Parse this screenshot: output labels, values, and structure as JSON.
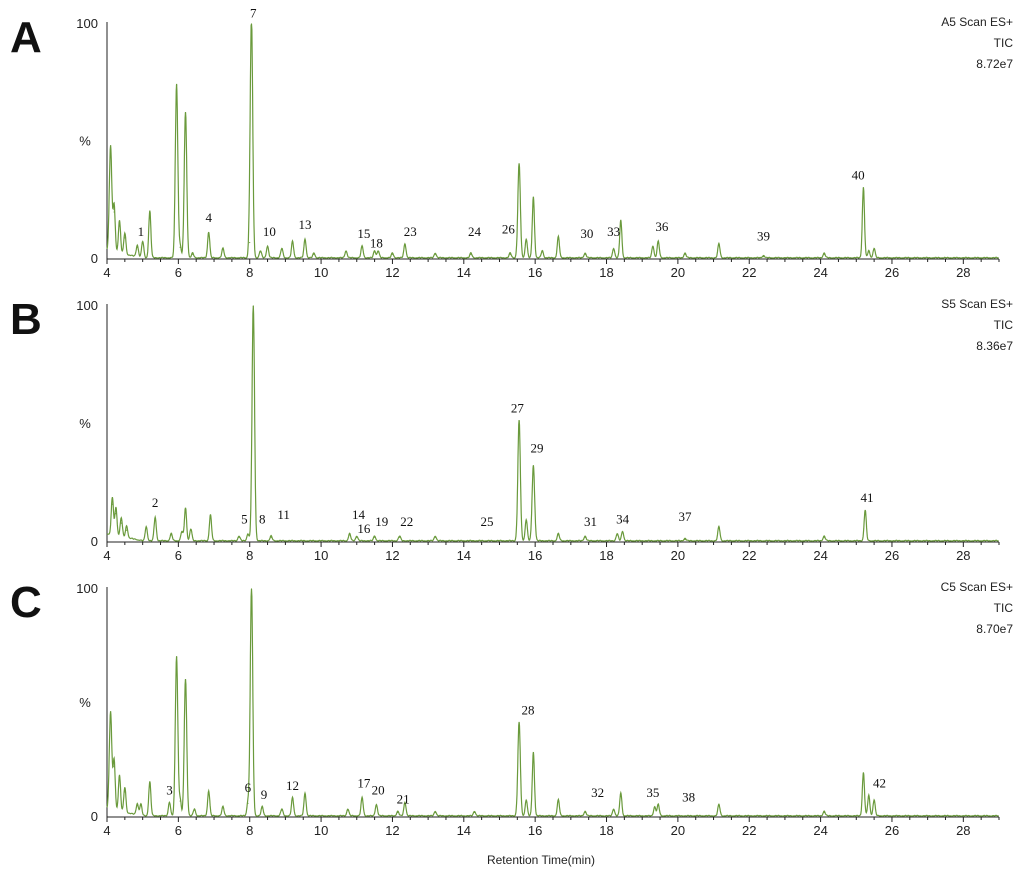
{
  "chart_data": [
    {
      "type": "line",
      "panel": "A",
      "info": [
        "A5  Scan ES+",
        "TIC",
        "8.72e7"
      ],
      "xlabel": "",
      "ylabel": "%",
      "xlim": [
        4,
        29
      ],
      "ylim": [
        0,
        100
      ],
      "xticks": [
        "4",
        "6",
        "8",
        "10",
        "12",
        "14",
        "16",
        "18",
        "20",
        "22",
        "24",
        "26",
        "28"
      ],
      "yticks": [
        "0",
        "%",
        "100"
      ],
      "peaks": [
        [
          4.1,
          45
        ],
        [
          4.2,
          20
        ],
        [
          4.35,
          14
        ],
        [
          4.5,
          9
        ],
        [
          4.85,
          5
        ],
        [
          5.0,
          7
        ],
        [
          5.2,
          20
        ],
        [
          5.95,
          74
        ],
        [
          6.05,
          5
        ],
        [
          6.2,
          62
        ],
        [
          6.4,
          2
        ],
        [
          6.85,
          11
        ],
        [
          7.25,
          4
        ],
        [
          8.0,
          7
        ],
        [
          8.05,
          100
        ],
        [
          8.3,
          3
        ],
        [
          8.5,
          5
        ],
        [
          8.9,
          4
        ],
        [
          9.2,
          7
        ],
        [
          9.55,
          8
        ],
        [
          9.8,
          2
        ],
        [
          10.7,
          3
        ],
        [
          11.15,
          5
        ],
        [
          11.5,
          3
        ],
        [
          11.6,
          3
        ],
        [
          12.0,
          2
        ],
        [
          12.35,
          6
        ],
        [
          13.2,
          2
        ],
        [
          14.2,
          2
        ],
        [
          15.3,
          2
        ],
        [
          15.55,
          40
        ],
        [
          15.75,
          8
        ],
        [
          15.95,
          26
        ],
        [
          16.2,
          3
        ],
        [
          16.65,
          9
        ],
        [
          17.4,
          2
        ],
        [
          18.2,
          4
        ],
        [
          18.4,
          16
        ],
        [
          19.3,
          5
        ],
        [
          19.45,
          7
        ],
        [
          20.2,
          2
        ],
        [
          21.15,
          6
        ],
        [
          22.4,
          1
        ],
        [
          24.1,
          2
        ],
        [
          25.2,
          30
        ],
        [
          25.35,
          3
        ],
        [
          25.5,
          4
        ]
      ],
      "labels": [
        {
          "text": "1",
          "x": 4.95,
          "y": 9
        },
        {
          "text": "4",
          "x": 6.85,
          "y": 15
        },
        {
          "text": "7",
          "x": 8.1,
          "y": 102
        },
        {
          "text": "10",
          "x": 8.55,
          "y": 9
        },
        {
          "text": "13",
          "x": 9.55,
          "y": 12
        },
        {
          "text": "15",
          "x": 11.2,
          "y": 8
        },
        {
          "text": "18",
          "x": 11.55,
          "y": 4
        },
        {
          "text": "23",
          "x": 12.5,
          "y": 9
        },
        {
          "text": "24",
          "x": 14.3,
          "y": 9
        },
        {
          "text": "26",
          "x": 15.25,
          "y": 10
        },
        {
          "text": "30",
          "x": 17.45,
          "y": 8
        },
        {
          "text": "33",
          "x": 18.2,
          "y": 9
        },
        {
          "text": "36",
          "x": 19.55,
          "y": 11
        },
        {
          "text": "39",
          "x": 22.4,
          "y": 7
        },
        {
          "text": "40",
          "x": 25.05,
          "y": 33
        }
      ]
    },
    {
      "type": "line",
      "panel": "B",
      "info": [
        "S5  Scan ES+",
        "TIC",
        "8.36e7"
      ],
      "xlabel": "",
      "ylabel": "%",
      "xlim": [
        4,
        29
      ],
      "ylim": [
        0,
        100
      ],
      "xticks": [
        "4",
        "6",
        "8",
        "10",
        "12",
        "14",
        "16",
        "18",
        "20",
        "22",
        "24",
        "26",
        "28"
      ],
      "yticks": [
        "0",
        "%",
        "100"
      ],
      "peaks": [
        [
          4.15,
          16
        ],
        [
          4.25,
          12
        ],
        [
          4.4,
          8
        ],
        [
          4.55,
          5
        ],
        [
          5.1,
          6
        ],
        [
          5.35,
          10
        ],
        [
          5.8,
          3
        ],
        [
          6.1,
          4
        ],
        [
          6.2,
          14
        ],
        [
          6.35,
          5
        ],
        [
          6.9,
          11
        ],
        [
          7.7,
          2
        ],
        [
          7.95,
          3
        ],
        [
          8.1,
          100
        ],
        [
          8.6,
          2
        ],
        [
          10.8,
          3
        ],
        [
          11.0,
          2
        ],
        [
          11.5,
          2
        ],
        [
          12.2,
          2
        ],
        [
          13.2,
          2
        ],
        [
          15.55,
          51
        ],
        [
          15.75,
          9
        ],
        [
          15.95,
          32
        ],
        [
          16.65,
          3
        ],
        [
          17.4,
          2
        ],
        [
          18.3,
          3
        ],
        [
          18.45,
          4
        ],
        [
          20.2,
          1
        ],
        [
          21.15,
          6
        ],
        [
          24.1,
          2
        ],
        [
          25.25,
          13
        ]
      ],
      "labels": [
        {
          "text": "2",
          "x": 5.35,
          "y": 14
        },
        {
          "text": "5",
          "x": 7.85,
          "y": 7
        },
        {
          "text": "8",
          "x": 8.35,
          "y": 7
        },
        {
          "text": "11",
          "x": 8.95,
          "y": 9
        },
        {
          "text": "14",
          "x": 11.05,
          "y": 9
        },
        {
          "text": "16",
          "x": 11.2,
          "y": 3
        },
        {
          "text": "19",
          "x": 11.7,
          "y": 6
        },
        {
          "text": "22",
          "x": 12.4,
          "y": 6
        },
        {
          "text": "25",
          "x": 14.65,
          "y": 6
        },
        {
          "text": "27",
          "x": 15.5,
          "y": 54
        },
        {
          "text": "29",
          "x": 16.05,
          "y": 37
        },
        {
          "text": "31",
          "x": 17.55,
          "y": 6
        },
        {
          "text": "34",
          "x": 18.45,
          "y": 7
        },
        {
          "text": "37",
          "x": 20.2,
          "y": 8
        },
        {
          "text": "41",
          "x": 25.3,
          "y": 16
        }
      ]
    },
    {
      "type": "line",
      "panel": "C",
      "info": [
        "C5  Scan ES+",
        "TIC",
        "8.70e7"
      ],
      "xlabel": "Retention Time(min)",
      "ylabel": "%",
      "xlim": [
        4,
        29
      ],
      "ylim": [
        0,
        100
      ],
      "xticks": [
        "4",
        "6",
        "8",
        "10",
        "12",
        "14",
        "16",
        "18",
        "20",
        "22",
        "24",
        "26",
        "28"
      ],
      "yticks": [
        "0",
        "%",
        "100"
      ],
      "peaks": [
        [
          4.1,
          43
        ],
        [
          4.2,
          22
        ],
        [
          4.35,
          16
        ],
        [
          4.5,
          11
        ],
        [
          4.85,
          5
        ],
        [
          4.95,
          5
        ],
        [
          5.2,
          15
        ],
        [
          5.75,
          6
        ],
        [
          5.95,
          70
        ],
        [
          6.05,
          7
        ],
        [
          6.2,
          60
        ],
        [
          6.45,
          3
        ],
        [
          6.85,
          11
        ],
        [
          7.25,
          4
        ],
        [
          7.95,
          6
        ],
        [
          8.05,
          100
        ],
        [
          8.35,
          4
        ],
        [
          8.9,
          3
        ],
        [
          9.2,
          8
        ],
        [
          9.55,
          10
        ],
        [
          10.75,
          3
        ],
        [
          11.15,
          8
        ],
        [
          11.55,
          5
        ],
        [
          12.15,
          2
        ],
        [
          12.35,
          6
        ],
        [
          13.2,
          2
        ],
        [
          14.3,
          2
        ],
        [
          15.55,
          41
        ],
        [
          15.75,
          7
        ],
        [
          15.95,
          28
        ],
        [
          16.65,
          7
        ],
        [
          17.4,
          2
        ],
        [
          18.2,
          3
        ],
        [
          18.4,
          10
        ],
        [
          19.35,
          4
        ],
        [
          19.45,
          5
        ],
        [
          21.15,
          5
        ],
        [
          24.1,
          2
        ],
        [
          25.2,
          19
        ],
        [
          25.35,
          9
        ],
        [
          25.5,
          7
        ]
      ],
      "labels": [
        {
          "text": "3",
          "x": 5.75,
          "y": 9
        },
        {
          "text": "6",
          "x": 7.95,
          "y": 10
        },
        {
          "text": "9",
          "x": 8.4,
          "y": 7
        },
        {
          "text": "12",
          "x": 9.2,
          "y": 11
        },
        {
          "text": "17",
          "x": 11.2,
          "y": 12
        },
        {
          "text": "20",
          "x": 11.6,
          "y": 9
        },
        {
          "text": "21",
          "x": 12.3,
          "y": 5
        },
        {
          "text": "28",
          "x": 15.8,
          "y": 44
        },
        {
          "text": "32",
          "x": 17.75,
          "y": 8
        },
        {
          "text": "35",
          "x": 19.3,
          "y": 8
        },
        {
          "text": "38",
          "x": 20.3,
          "y": 6
        },
        {
          "text": "42",
          "x": 25.65,
          "y": 12
        }
      ]
    }
  ]
}
